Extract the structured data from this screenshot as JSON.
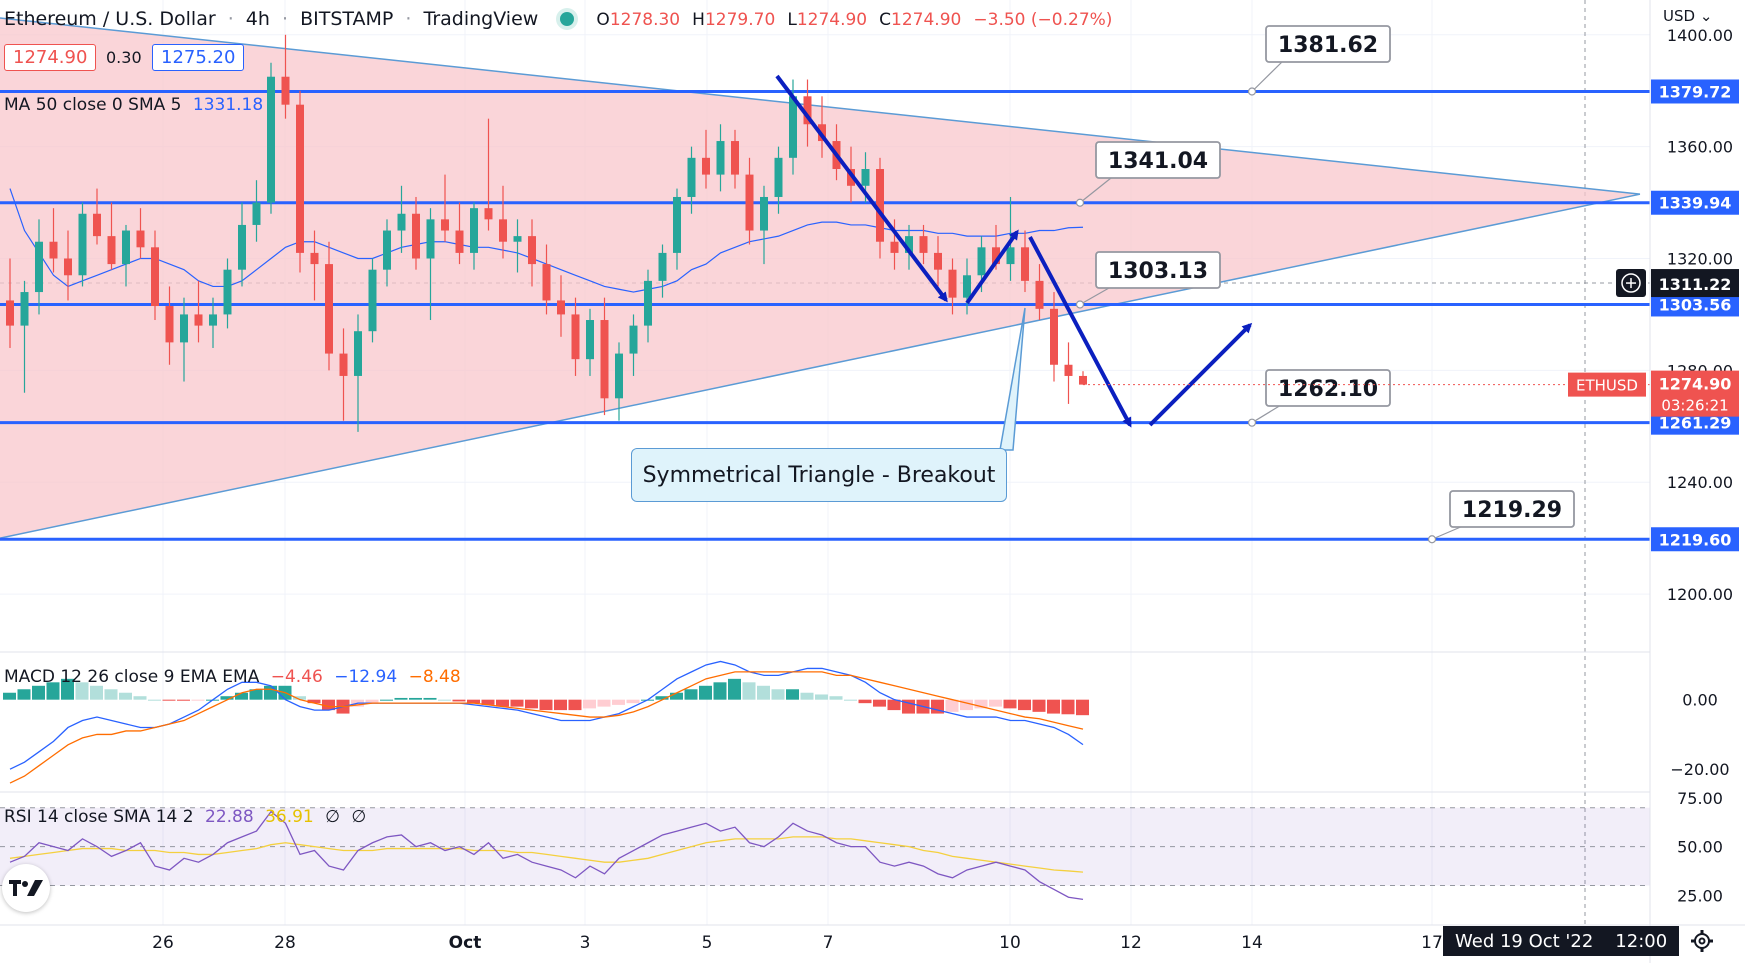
{
  "header": {
    "symbol_title": "Ethereum / U.S. Dollar",
    "interval": "4h",
    "exchange": "BITSTAMP",
    "platform": "TradingView",
    "o_label": "O",
    "o_value": "1278.30",
    "h_label": "H",
    "h_value": "1279.70",
    "l_label": "L",
    "l_value": "1274.90",
    "c_label": "C",
    "c_value": "1274.90",
    "change": "−3.50 (−0.27%)",
    "bid": "1274.90",
    "spread": "0.30",
    "ask": "1275.20",
    "ma_legend": "MA 50 close 0 SMA 5",
    "ma_value": "1331.18",
    "currency": "USD ⌄"
  },
  "macd_legend": {
    "label": "MACD 12 26 close 9 EMA EMA",
    "hist": "−4.46",
    "macd": "−12.94",
    "signal": "−8.48"
  },
  "rsi_legend": {
    "label": "RSI 14 close SMA 14 2",
    "rsi": "22.88",
    "sma": "36.91",
    "extra1": "∅",
    "extra2": "∅"
  },
  "price_tags": {
    "symbol_tag": "ETHUSD",
    "last_price": "1274.90",
    "countdown": "03:26:21",
    "crosshair_price": "1311.22"
  },
  "date_tag": {
    "date": "Wed 19 Oct '22",
    "time": "12:00"
  },
  "annotation": "Symmetrical Triangle - Breakout",
  "colors": {
    "up": "#26a69a",
    "down": "#ef5350",
    "level": "#2962ff",
    "triangle": "#f8c7cc",
    "arrow": "#0b1fbf"
  },
  "chart_data": {
    "type": "candlestick",
    "title": "Ethereum / U.S. Dollar · 4h · BITSTAMP",
    "y_axis": {
      "ylim": [
        1180,
        1406
      ],
      "ticks": [
        "1200.00",
        "1240.00",
        "1280.00",
        "1320.00",
        "1360.00",
        "1400.00"
      ]
    },
    "x_axis": {
      "ticks": [
        "26",
        "28",
        "Oct",
        "3",
        "5",
        "7",
        "10",
        "12",
        "14",
        "17"
      ]
    },
    "levels": [
      {
        "label": "1379.72",
        "value": 1379.72,
        "callout": "1381.62"
      },
      {
        "label": "1339.94",
        "value": 1339.94,
        "callout": "1341.04"
      },
      {
        "label": "1303.56",
        "value": 1303.56,
        "callout": "1303.13"
      },
      {
        "label": "1261.29",
        "value": 1261.29,
        "callout": "1262.10"
      },
      {
        "label": "1219.60",
        "value": 1219.6,
        "callout": "1219.29"
      }
    ],
    "triangle": {
      "upper": [
        [
          0,
          1406
        ],
        [
          1640,
          1343
        ]
      ],
      "lower": [
        [
          0,
          1220
        ],
        [
          1640,
          1343
        ]
      ]
    },
    "candles": [
      {
        "o": 1305,
        "h": 1320,
        "l": 1288,
        "c": 1296
      },
      {
        "o": 1296,
        "h": 1312,
        "l": 1272,
        "c": 1308
      },
      {
        "o": 1308,
        "h": 1334,
        "l": 1300,
        "c": 1326
      },
      {
        "o": 1326,
        "h": 1338,
        "l": 1315,
        "c": 1320
      },
      {
        "o": 1320,
        "h": 1330,
        "l": 1305,
        "c": 1314
      },
      {
        "o": 1314,
        "h": 1340,
        "l": 1310,
        "c": 1336
      },
      {
        "o": 1336,
        "h": 1345,
        "l": 1325,
        "c": 1328
      },
      {
        "o": 1328,
        "h": 1340,
        "l": 1316,
        "c": 1318
      },
      {
        "o": 1318,
        "h": 1332,
        "l": 1310,
        "c": 1330
      },
      {
        "o": 1330,
        "h": 1338,
        "l": 1320,
        "c": 1324
      },
      {
        "o": 1324,
        "h": 1330,
        "l": 1298,
        "c": 1303
      },
      {
        "o": 1303,
        "h": 1310,
        "l": 1282,
        "c": 1290
      },
      {
        "o": 1290,
        "h": 1306,
        "l": 1276,
        "c": 1300
      },
      {
        "o": 1300,
        "h": 1312,
        "l": 1290,
        "c": 1296
      },
      {
        "o": 1296,
        "h": 1306,
        "l": 1288,
        "c": 1300
      },
      {
        "o": 1300,
        "h": 1320,
        "l": 1295,
        "c": 1316
      },
      {
        "o": 1316,
        "h": 1340,
        "l": 1310,
        "c": 1332
      },
      {
        "o": 1332,
        "h": 1348,
        "l": 1326,
        "c": 1340
      },
      {
        "o": 1340,
        "h": 1390,
        "l": 1336,
        "c": 1385
      },
      {
        "o": 1385,
        "h": 1400,
        "l": 1370,
        "c": 1375
      },
      {
        "o": 1375,
        "h": 1380,
        "l": 1315,
        "c": 1322
      },
      {
        "o": 1322,
        "h": 1330,
        "l": 1305,
        "c": 1318
      },
      {
        "o": 1318,
        "h": 1326,
        "l": 1280,
        "c": 1286
      },
      {
        "o": 1286,
        "h": 1295,
        "l": 1262,
        "c": 1278
      },
      {
        "o": 1278,
        "h": 1300,
        "l": 1258,
        "c": 1294
      },
      {
        "o": 1294,
        "h": 1320,
        "l": 1290,
        "c": 1316
      },
      {
        "o": 1316,
        "h": 1334,
        "l": 1310,
        "c": 1330
      },
      {
        "o": 1330,
        "h": 1346,
        "l": 1322,
        "c": 1336
      },
      {
        "o": 1336,
        "h": 1342,
        "l": 1316,
        "c": 1320
      },
      {
        "o": 1320,
        "h": 1338,
        "l": 1298,
        "c": 1334
      },
      {
        "o": 1334,
        "h": 1350,
        "l": 1326,
        "c": 1330
      },
      {
        "o": 1330,
        "h": 1340,
        "l": 1318,
        "c": 1322
      },
      {
        "o": 1322,
        "h": 1340,
        "l": 1316,
        "c": 1338
      },
      {
        "o": 1338,
        "h": 1370,
        "l": 1330,
        "c": 1334
      },
      {
        "o": 1334,
        "h": 1346,
        "l": 1320,
        "c": 1326
      },
      {
        "o": 1326,
        "h": 1334,
        "l": 1315,
        "c": 1328
      },
      {
        "o": 1328,
        "h": 1334,
        "l": 1310,
        "c": 1318
      },
      {
        "o": 1318,
        "h": 1325,
        "l": 1300,
        "c": 1305
      },
      {
        "o": 1305,
        "h": 1314,
        "l": 1292,
        "c": 1300
      },
      {
        "o": 1300,
        "h": 1306,
        "l": 1278,
        "c": 1284
      },
      {
        "o": 1284,
        "h": 1302,
        "l": 1278,
        "c": 1298
      },
      {
        "o": 1298,
        "h": 1306,
        "l": 1264,
        "c": 1270
      },
      {
        "o": 1270,
        "h": 1290,
        "l": 1262,
        "c": 1286
      },
      {
        "o": 1286,
        "h": 1300,
        "l": 1278,
        "c": 1296
      },
      {
        "o": 1296,
        "h": 1316,
        "l": 1290,
        "c": 1312
      },
      {
        "o": 1312,
        "h": 1325,
        "l": 1306,
        "c": 1322
      },
      {
        "o": 1322,
        "h": 1345,
        "l": 1316,
        "c": 1342
      },
      {
        "o": 1342,
        "h": 1360,
        "l": 1336,
        "c": 1356
      },
      {
        "o": 1356,
        "h": 1366,
        "l": 1345,
        "c": 1350
      },
      {
        "o": 1350,
        "h": 1368,
        "l": 1344,
        "c": 1362
      },
      {
        "o": 1362,
        "h": 1366,
        "l": 1345,
        "c": 1350
      },
      {
        "o": 1350,
        "h": 1356,
        "l": 1325,
        "c": 1330
      },
      {
        "o": 1330,
        "h": 1346,
        "l": 1318,
        "c": 1342
      },
      {
        "o": 1342,
        "h": 1360,
        "l": 1336,
        "c": 1356
      },
      {
        "o": 1356,
        "h": 1384,
        "l": 1350,
        "c": 1378
      },
      {
        "o": 1378,
        "h": 1384,
        "l": 1360,
        "c": 1368
      },
      {
        "o": 1368,
        "h": 1378,
        "l": 1356,
        "c": 1362
      },
      {
        "o": 1362,
        "h": 1368,
        "l": 1348,
        "c": 1352
      },
      {
        "o": 1352,
        "h": 1360,
        "l": 1340,
        "c": 1346
      },
      {
        "o": 1346,
        "h": 1358,
        "l": 1340,
        "c": 1352
      },
      {
        "o": 1352,
        "h": 1356,
        "l": 1320,
        "c": 1326
      },
      {
        "o": 1326,
        "h": 1334,
        "l": 1316,
        "c": 1322
      },
      {
        "o": 1322,
        "h": 1332,
        "l": 1316,
        "c": 1328
      },
      {
        "o": 1328,
        "h": 1332,
        "l": 1318,
        "c": 1322
      },
      {
        "o": 1322,
        "h": 1328,
        "l": 1310,
        "c": 1316
      },
      {
        "o": 1316,
        "h": 1320,
        "l": 1300,
        "c": 1306
      },
      {
        "o": 1306,
        "h": 1320,
        "l": 1300,
        "c": 1314
      },
      {
        "o": 1314,
        "h": 1328,
        "l": 1308,
        "c": 1324
      },
      {
        "o": 1324,
        "h": 1332,
        "l": 1316,
        "c": 1318
      },
      {
        "o": 1318,
        "h": 1342,
        "l": 1312,
        "c": 1324
      },
      {
        "o": 1324,
        "h": 1330,
        "l": 1308,
        "c": 1312
      },
      {
        "o": 1312,
        "h": 1318,
        "l": 1298,
        "c": 1302
      },
      {
        "o": 1302,
        "h": 1308,
        "l": 1276,
        "c": 1282
      },
      {
        "o": 1282,
        "h": 1290,
        "l": 1268,
        "c": 1278
      },
      {
        "o": 1278,
        "h": 1279.7,
        "l": 1274.9,
        "c": 1274.9
      }
    ],
    "ma50": [
      1345,
      1330,
      1322,
      1314,
      1310,
      1312,
      1314,
      1316,
      1318,
      1320,
      1320,
      1318,
      1316,
      1312,
      1310,
      1310,
      1312,
      1316,
      1320,
      1324,
      1326,
      1326,
      1324,
      1322,
      1320,
      1320,
      1322,
      1324,
      1325,
      1326,
      1326,
      1325,
      1324,
      1324,
      1323,
      1322,
      1320,
      1318,
      1316,
      1314,
      1312,
      1310,
      1309,
      1308,
      1309,
      1310,
      1312,
      1316,
      1318,
      1322,
      1324,
      1326,
      1327,
      1328,
      1330,
      1332,
      1333,
      1333,
      1332,
      1332,
      1331,
      1330,
      1330,
      1330,
      1329,
      1329,
      1328,
      1328,
      1328,
      1329,
      1329,
      1330,
      1330,
      1331,
      1331.18
    ],
    "macd": {
      "legend": "MACD 12 26 close 9 EMA EMA",
      "ylim": [
        -26,
        12
      ],
      "ticks": [
        "0.00",
        "−20.00"
      ],
      "hist": [
        2,
        3,
        4,
        5,
        6,
        5,
        4,
        3,
        2,
        1,
        0,
        -0.2,
        -0.3,
        -0.2,
        0,
        1,
        2,
        3,
        4,
        4,
        1,
        -1,
        -3,
        -4,
        -2,
        -1,
        0,
        0.5,
        0.5,
        0.5,
        0,
        -0.5,
        -1,
        -1.5,
        -2,
        -2,
        -2.5,
        -3,
        -3,
        -3,
        -2.5,
        -2,
        -1.5,
        -1,
        0,
        1,
        2,
        3,
        4,
        5,
        6,
        5,
        4,
        3,
        3,
        2,
        1.5,
        1,
        0,
        -1,
        -2,
        -3,
        -4,
        -4,
        -4,
        -3.5,
        -3,
        -2.5,
        -2,
        -2.5,
        -3,
        -3.5,
        -4,
        -4.2,
        -4.46
      ],
      "line": [
        -20,
        -18,
        -15,
        -12,
        -8,
        -6,
        -5,
        -6,
        -7,
        -8,
        -8,
        -7,
        -5,
        -3,
        0,
        3,
        5,
        5,
        4,
        0,
        -2,
        -3,
        -3,
        -2,
        -1,
        -1,
        -1,
        -1,
        -1,
        -1,
        -1,
        -1,
        -1.5,
        -2,
        -2.5,
        -3,
        -4,
        -5,
        -6,
        -6,
        -6,
        -5,
        -4,
        -2,
        0,
        3,
        6,
        8,
        10,
        11,
        10,
        8,
        7,
        7,
        8,
        9,
        9,
        8,
        7,
        5,
        2,
        0,
        -1,
        -2,
        -3,
        -4,
        -5,
        -5,
        -5,
        -6,
        -6,
        -7,
        -8,
        -10,
        -12.94
      ],
      "signal": [
        -24,
        -22,
        -19,
        -16,
        -13,
        -11,
        -10,
        -10,
        -9,
        -9,
        -8,
        -7,
        -6,
        -4,
        -2,
        0,
        2,
        3,
        3,
        2,
        0,
        -1,
        -2,
        -2,
        -1.5,
        -1,
        -1,
        -1,
        -1,
        -1,
        -1,
        -1,
        -1,
        -1.5,
        -2,
        -2.5,
        -3,
        -3.5,
        -4,
        -4.5,
        -5,
        -5,
        -4.5,
        -3.5,
        -2,
        0,
        2,
        4,
        6,
        7,
        8,
        8,
        8,
        8,
        8,
        8,
        8,
        7,
        7,
        6,
        5,
        4,
        3,
        2,
        1,
        0,
        -1,
        -2,
        -3,
        -4,
        -5,
        -5.5,
        -6.5,
        -7.5,
        -8.48
      ]
    },
    "rsi": {
      "legend": "RSI 14 close SMA 14 2",
      "ylim": [
        20,
        75
      ],
      "ticks": [
        "75.00",
        "50.00",
        "25.00"
      ],
      "rsi": [
        42,
        45,
        52,
        50,
        48,
        54,
        50,
        45,
        48,
        52,
        40,
        38,
        44,
        42,
        46,
        52,
        55,
        58,
        68,
        62,
        46,
        48,
        40,
        38,
        48,
        52,
        55,
        56,
        50,
        52,
        48,
        50,
        46,
        52,
        44,
        46,
        42,
        40,
        38,
        34,
        40,
        36,
        44,
        48,
        52,
        56,
        58,
        60,
        62,
        58,
        60,
        52,
        50,
        55,
        62,
        58,
        56,
        52,
        50,
        50,
        42,
        40,
        42,
        40,
        36,
        34,
        38,
        40,
        42,
        40,
        38,
        32,
        28,
        24,
        22.88
      ],
      "sma": [
        44,
        45,
        46,
        47,
        48,
        49,
        49,
        49,
        48,
        48,
        48,
        47,
        47,
        46,
        46,
        47,
        48,
        49,
        51,
        52,
        51,
        50,
        49,
        48,
        48,
        48,
        49,
        49,
        49,
        49,
        49,
        49,
        48,
        48,
        48,
        47,
        47,
        46,
        45,
        44,
        43,
        42,
        42,
        43,
        44,
        46,
        48,
        50,
        52,
        53,
        54,
        54,
        54,
        54,
        55,
        55,
        55,
        54,
        54,
        53,
        52,
        51,
        50,
        48,
        47,
        45,
        44,
        43,
        42,
        41,
        40,
        39,
        38,
        37.5,
        36.91
      ]
    }
  }
}
